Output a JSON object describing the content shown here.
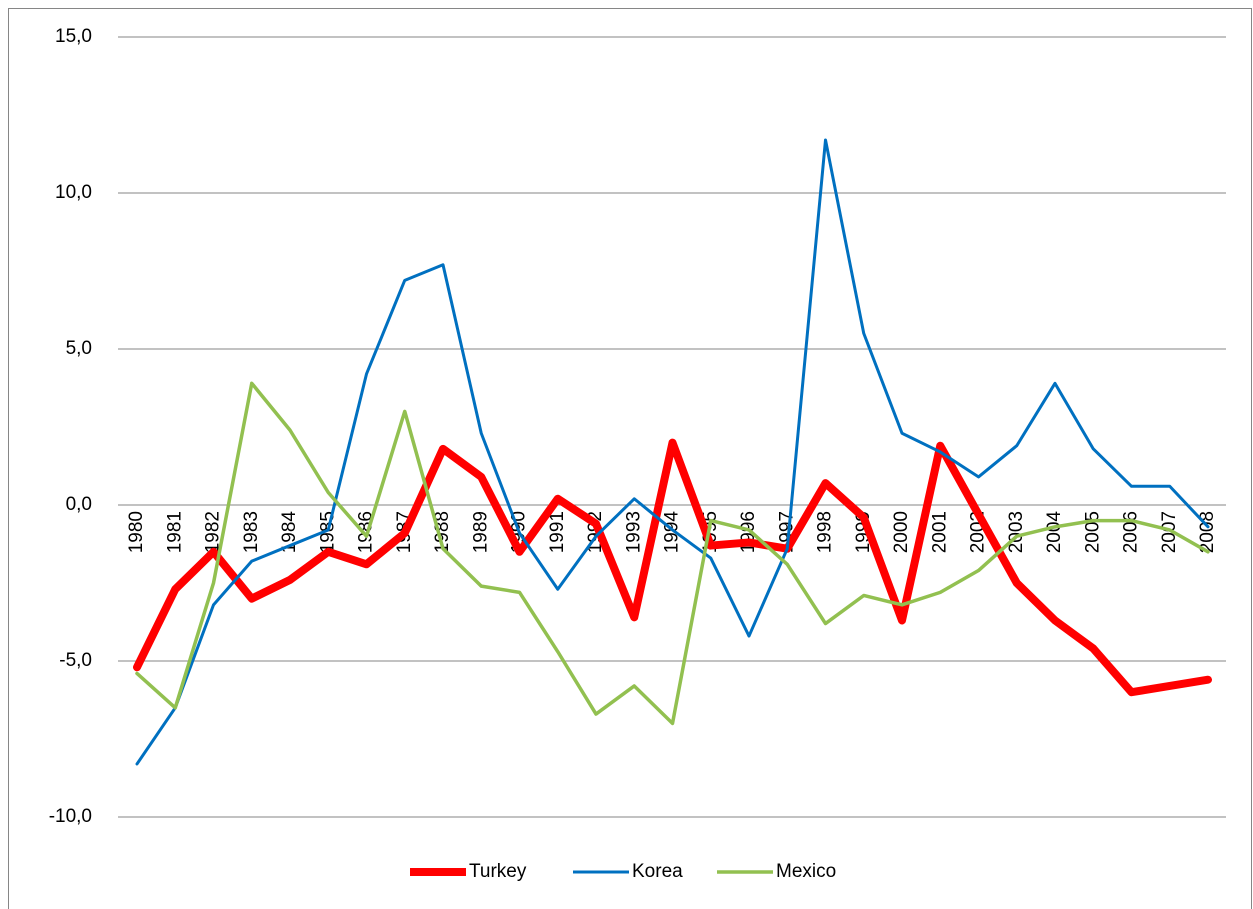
{
  "chart_data": {
    "type": "line",
    "categories": [
      "1980",
      "1981",
      "1982",
      "1983",
      "1984",
      "1985",
      "1986",
      "1987",
      "1988",
      "1989",
      "1990",
      "1991",
      "1992",
      "1993",
      "1994",
      "1995",
      "1996",
      "1997",
      "1998",
      "1999",
      "2000",
      "2001",
      "2002",
      "2003",
      "2004",
      "2005",
      "2006",
      "2007",
      "2008"
    ],
    "series": [
      {
        "name": "Turkey",
        "color": "#ff0000",
        "width": 8,
        "values": [
          -5.2,
          -2.7,
          -1.5,
          -3.0,
          -2.4,
          -1.5,
          -1.9,
          -0.9,
          1.8,
          0.9,
          -1.5,
          0.2,
          -0.6,
          -3.6,
          2.0,
          -1.3,
          -1.2,
          -1.4,
          0.7,
          -0.4,
          -3.7,
          1.9,
          -0.3,
          -2.5,
          -3.7,
          -4.6,
          -6.0,
          -5.8,
          -5.6
        ]
      },
      {
        "name": "Korea",
        "color": "#0070c0",
        "width": 3,
        "values": [
          -8.3,
          -6.5,
          -3.2,
          -1.8,
          -1.3,
          -0.8,
          4.2,
          7.2,
          7.7,
          2.3,
          -0.9,
          -2.7,
          -1.0,
          0.2,
          -0.8,
          -1.7,
          -4.2,
          -1.4,
          11.7,
          5.5,
          2.3,
          1.7,
          0.9,
          1.9,
          3.9,
          1.8,
          0.6,
          0.6,
          -0.7
        ]
      },
      {
        "name": "Mexico",
        "color": "#92c050",
        "width": 3.5,
        "values": [
          -5.4,
          -6.5,
          -2.5,
          3.9,
          2.4,
          0.4,
          -1.0,
          3.0,
          -1.4,
          -2.6,
          -2.8,
          -4.7,
          -6.7,
          -5.8,
          -7.0,
          -0.5,
          -0.8,
          -1.9,
          -3.8,
          -2.9,
          -3.2,
          -2.8,
          -2.1,
          -1.0,
          -0.7,
          -0.5,
          -0.5,
          -0.8,
          -1.5
        ]
      }
    ],
    "ylim": [
      -10,
      15
    ],
    "yticks": [
      {
        "value": -10,
        "label": "-10,0"
      },
      {
        "value": -5,
        "label": "-5,0"
      },
      {
        "value": 0,
        "label": "0,0"
      },
      {
        "value": 5,
        "label": "5,0"
      },
      {
        "value": 10,
        "label": "10,0"
      },
      {
        "value": 15,
        "label": "15,0"
      }
    ],
    "grid": true,
    "legend": "bottom"
  }
}
